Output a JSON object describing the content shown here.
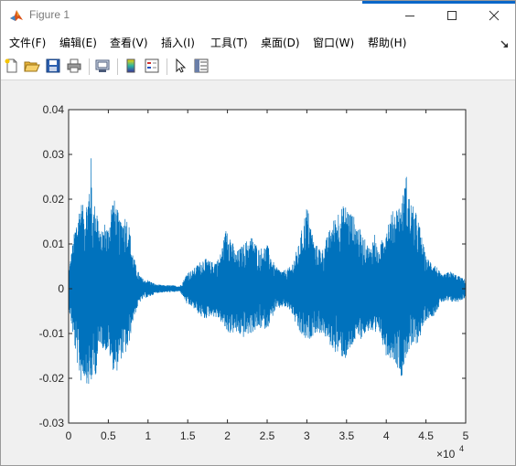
{
  "window": {
    "title": "Figure 1",
    "controls": {
      "minimize": "minimize",
      "maximize": "maximize",
      "close": "close"
    }
  },
  "menu": {
    "items": [
      "文件(F)",
      "编辑(E)",
      "查看(V)",
      "插入(I)",
      "工具(T)",
      "桌面(D)",
      "窗口(W)",
      "帮助(H)"
    ]
  },
  "toolbar": {
    "buttons": [
      "new-figure-icon",
      "open-file-icon",
      "save-icon",
      "print-icon",
      "link-icon",
      "colorbar-icon",
      "legend-icon",
      "pointer-icon",
      "property-editor-icon"
    ]
  },
  "colors": {
    "waveform": "#0072bd",
    "axes_bg": "#ffffff",
    "figure_bg": "#f0f0f0",
    "title_accent": "#0a67c9"
  },
  "chart_data": {
    "type": "line",
    "title": "",
    "xlabel": "",
    "ylabel": "",
    "xlim": [
      0,
      50000
    ],
    "ylim": [
      -0.03,
      0.04
    ],
    "x_ticks": [
      0,
      5000,
      10000,
      15000,
      20000,
      25000,
      30000,
      35000,
      40000,
      45000,
      50000
    ],
    "x_tick_labels": [
      "0",
      "0.5",
      "1",
      "1.5",
      "2",
      "2.5",
      "3",
      "3.5",
      "4",
      "4.5",
      "5"
    ],
    "x_exponent_label": "×10",
    "x_exponent_power": "4",
    "y_ticks": [
      -0.03,
      -0.02,
      -0.01,
      0,
      0.01,
      0.02,
      0.03,
      0.04
    ],
    "y_tick_labels": [
      "-0.03",
      "-0.02",
      "-0.01",
      "0",
      "0.01",
      "0.02",
      "0.03",
      "0.04"
    ],
    "grid": false,
    "series": [
      {
        "envelope_x": [
          0,
          500,
          1000,
          1500,
          2000,
          2500,
          2800,
          3000,
          3500,
          4000,
          4500,
          5000,
          5500,
          6000,
          6500,
          7000,
          7500,
          8000,
          8500,
          9000,
          9500,
          10000,
          11000,
          12000,
          13000,
          14000,
          14500,
          15000,
          15500,
          16000,
          17000,
          18000,
          19000,
          20000,
          21000,
          22000,
          23000,
          24000,
          25000,
          26000,
          27000,
          28000,
          29000,
          30000,
          31000,
          32000,
          33000,
          34000,
          35000,
          36000,
          37000,
          38000,
          38500,
          39000,
          40000,
          41000,
          42000,
          42500,
          43000,
          44000,
          45000,
          46000,
          47000,
          48000,
          49000,
          50000
        ],
        "envelope_upper": [
          0.004,
          0.01,
          0.016,
          0.02,
          0.018,
          0.022,
          0.03,
          0.018,
          0.02,
          0.012,
          0.015,
          0.014,
          0.021,
          0.019,
          0.015,
          0.017,
          0.016,
          0.009,
          0.005,
          0.003,
          0.002,
          0.002,
          0.001,
          0.0008,
          0.0008,
          0.0006,
          0.002,
          0.004,
          0.004,
          0.005,
          0.007,
          0.006,
          0.007,
          0.015,
          0.008,
          0.01,
          0.012,
          0.009,
          0.01,
          0.005,
          0.004,
          0.005,
          0.01,
          0.019,
          0.01,
          0.009,
          0.014,
          0.018,
          0.019,
          0.016,
          0.012,
          0.009,
          0.013,
          0.008,
          0.015,
          0.018,
          0.02,
          0.026,
          0.02,
          0.016,
          0.007,
          0.006,
          0.003,
          0.004,
          0.003,
          0.002
        ],
        "envelope_lower": [
          -0.004,
          -0.01,
          -0.016,
          -0.021,
          -0.02,
          -0.022,
          -0.023,
          -0.02,
          -0.019,
          -0.012,
          -0.014,
          -0.014,
          -0.018,
          -0.019,
          -0.016,
          -0.015,
          -0.014,
          -0.008,
          -0.005,
          -0.003,
          -0.002,
          -0.002,
          -0.001,
          -0.0008,
          -0.0008,
          -0.0006,
          -0.002,
          -0.004,
          -0.004,
          -0.005,
          -0.007,
          -0.006,
          -0.007,
          -0.01,
          -0.01,
          -0.011,
          -0.01,
          -0.009,
          -0.009,
          -0.005,
          -0.004,
          -0.005,
          -0.01,
          -0.012,
          -0.01,
          -0.01,
          -0.013,
          -0.015,
          -0.016,
          -0.012,
          -0.011,
          -0.009,
          -0.013,
          -0.009,
          -0.015,
          -0.016,
          -0.02,
          -0.015,
          -0.014,
          -0.012,
          -0.007,
          -0.006,
          -0.003,
          -0.003,
          -0.003,
          -0.002
        ]
      }
    ]
  }
}
